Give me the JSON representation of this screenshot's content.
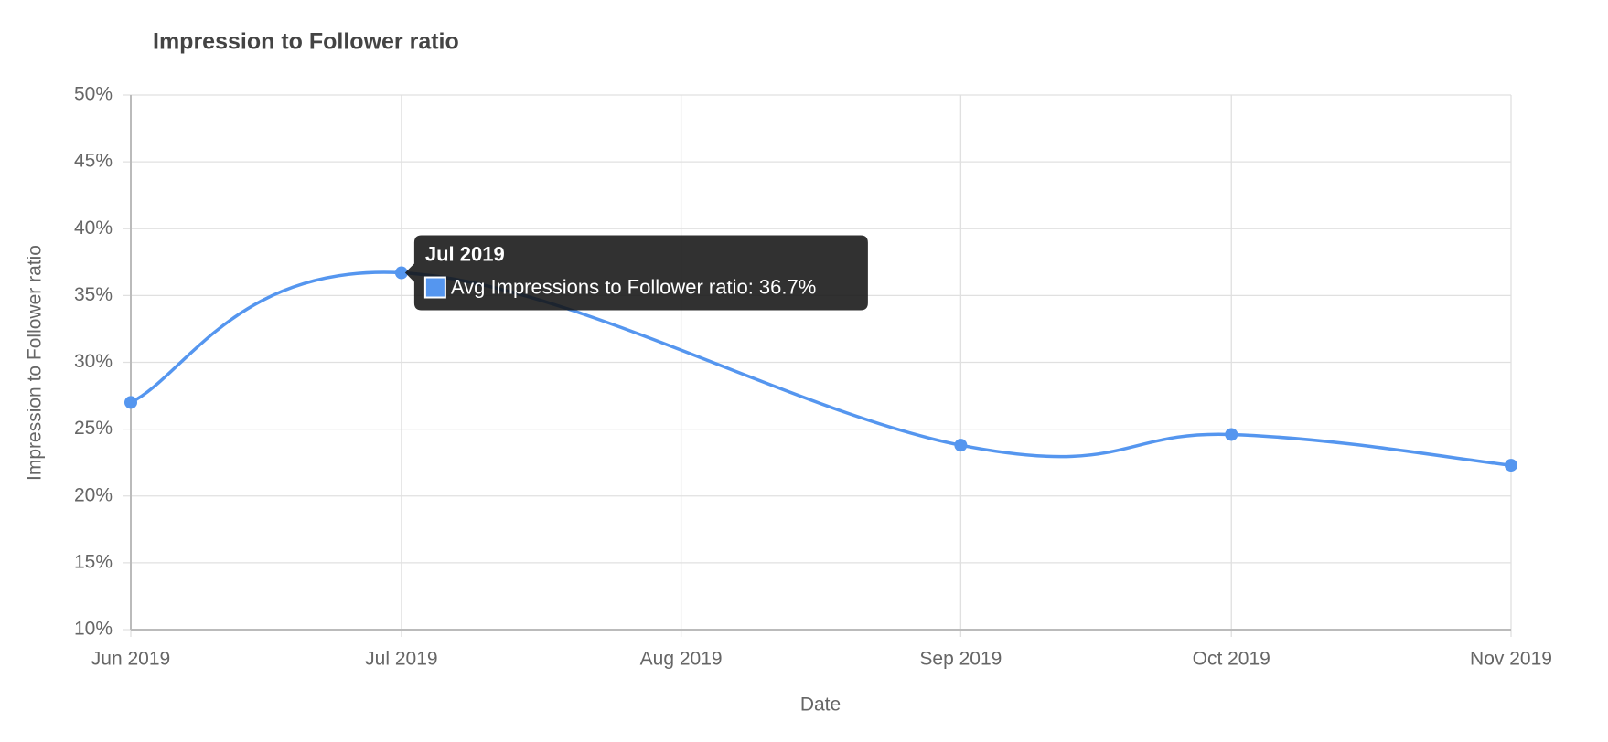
{
  "chart_data": {
    "type": "line",
    "title": "Impression to Follower ratio",
    "x_label": "Date",
    "y_label": "Impression to Follower ratio",
    "x": [
      "Jun 2019",
      "Jul 2019",
      "Sep 2019",
      "Oct 2019",
      "Nov 2019"
    ],
    "series": [
      {
        "name": "Avg Impressions to Follower ratio",
        "color": "#5596ef",
        "values": [
          27,
          36.7,
          23.8,
          24.6,
          22.3
        ]
      }
    ],
    "xlim": [
      "Jun 2019",
      "Nov 2019"
    ],
    "xticks": [
      "Jun 2019",
      "Jul 2019",
      "Aug 2019",
      "Sep 2019",
      "Oct 2019",
      "Nov 2019"
    ],
    "ylim": [
      10,
      50
    ],
    "yticks": [
      {
        "value": 10,
        "label": "10%"
      },
      {
        "value": 15,
        "label": "15%"
      },
      {
        "value": 20,
        "label": "20%"
      },
      {
        "value": 25,
        "label": "25%"
      },
      {
        "value": 30,
        "label": "30%"
      },
      {
        "value": 35,
        "label": "35%"
      },
      {
        "value": 40,
        "label": "40%"
      },
      {
        "value": 45,
        "label": "45%"
      },
      {
        "value": 50,
        "label": "50%"
      }
    ],
    "grid": true,
    "tooltip": {
      "point": 1,
      "title": "Jul 2019",
      "label": "Avg Impressions to Follower ratio: 36.7%"
    }
  }
}
